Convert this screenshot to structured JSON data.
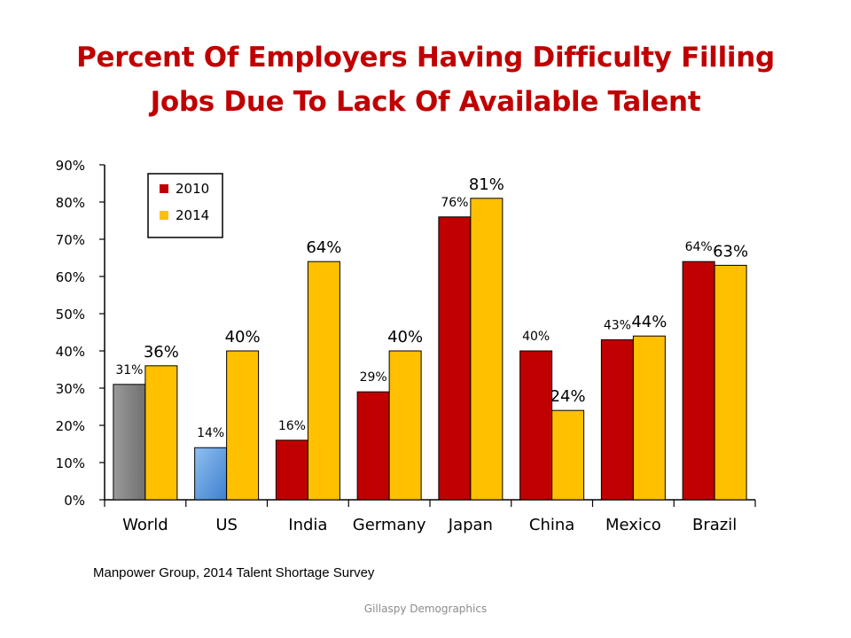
{
  "title": {
    "line1": "Percent Of Employers Having Difficulty Filling",
    "line2": "Jobs Due To Lack Of Available Talent"
  },
  "source": "Manpower Group, 2014 Talent Shortage Survey",
  "footer": "Gillaspy Demographics",
  "colors": {
    "series_2010": "#c00000",
    "series_2014": "#ffc000",
    "world_2010": "#808080",
    "us_2010": "#5b9bd5"
  },
  "chart_data": {
    "type": "bar",
    "categories": [
      "World",
      "US",
      "India",
      "Germany",
      "Japan",
      "China",
      "Mexico",
      "Brazil"
    ],
    "series": [
      {
        "name": "2010",
        "values": [
          31,
          14,
          16,
          29,
          76,
          40,
          43,
          64
        ],
        "labels": [
          "31%",
          "14%",
          "16%",
          "29%",
          "76%",
          "40%",
          "43%",
          "64%"
        ]
      },
      {
        "name": "2014",
        "values": [
          36,
          40,
          64,
          40,
          81,
          24,
          44,
          63
        ],
        "labels": [
          "36%",
          "40%",
          "64%",
          "40%",
          "81%",
          "24%",
          "44%",
          "63%"
        ]
      }
    ],
    "ylim": [
      0,
      90
    ],
    "yticks": [
      "0%",
      "10%",
      "20%",
      "30%",
      "40%",
      "50%",
      "60%",
      "70%",
      "80%",
      "90%"
    ],
    "xlabel": "",
    "ylabel": "",
    "grid": false,
    "legend_position": "top-left"
  }
}
